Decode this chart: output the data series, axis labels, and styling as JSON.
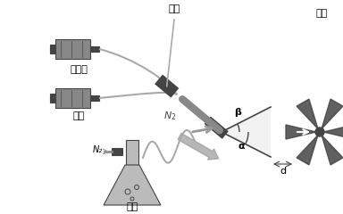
{
  "bg_color": "#ffffff",
  "labels": {
    "voltage": "电压",
    "extractor": "萃取剂",
    "methanol": "甲醇",
    "n2": "N₂",
    "sample": "样品",
    "ms": "质谱",
    "alpha": "α",
    "beta": "β",
    "d": "d",
    "n2_spray": "N₂"
  },
  "colors": {
    "device_gray": "#888888",
    "device_dark": "#444444",
    "line_gray": "#aaaaaa",
    "arrow_gray": "#999999",
    "text": "#000000",
    "flask_gray": "#bbbbbb",
    "dashed": "#555555",
    "cone_fill": "#cccccc"
  }
}
